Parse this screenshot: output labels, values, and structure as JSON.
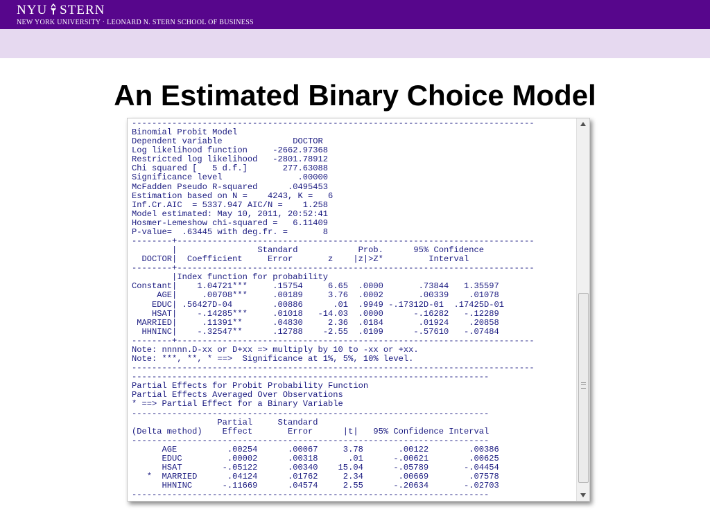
{
  "header": {
    "logo_left": "NYU",
    "logo_right": "STERN",
    "subtitle": "NEW YORK UNIVERSITY · LEONARD N. STERN SCHOOL OF BUSINESS"
  },
  "title": "An Estimated Binary Choice Model",
  "output": {
    "text": "--------------------------------------------------------------------------------\nBinomial Probit Model\nDependent variable              DOCTOR\nLog likelihood function     -2662.97368\nRestricted log likelihood   -2801.78912\nChi squared [   5 d.f.]       277.63088\nSignificance level               .00000\nMcFadden Pseudo R-squared      .0495453\nEstimation based on N =    4243, K =   6\nInf.Cr.AIC  = 5337.947 AIC/N =    1.258\nModel estimated: May 10, 2011, 20:52:41\nHosmer-Lemeshow chi-squared =   6.11409\nP-value=  .63445 with deg.fr. =       8\n--------+-----------------------------------------------------------------------\n        |                Standard            Prob.      95% Confidence\n  DOCTOR|  Coefficient     Error       z    |z|>Z*         Interval\n--------+-----------------------------------------------------------------------\n        |Index function for probability\nConstant|    1.04721***     .15754     6.65  .0000       .73844   1.35597\n     AGE|     .00708***     .00189     3.76  .0002       .00339    .01078\n    EDUC| .56427D-04        .00886      .01  .9949 -.17312D-01  .17425D-01\n    HSAT|    -.14285***     .01018   -14.03  .0000      -.16282   -.12289\n MARRIED|     .11391**      .04830     2.36  .0184       .01924    .20858\n  HHNINC|    -.32547**      .12788    -2.55  .0109      -.57610   -.07484\n--------+-----------------------------------------------------------------------\nNote: nnnnn.D-xx or D+xx => multiply by 10 to -xx or +xx.\nNote: ***, **, * ==>  Significance at 1%, 5%, 10% level.\n--------------------------------------------------------------------------------\n-----------------------------------------------------------------------\nPartial Effects for Probit Probability Function\nPartial Effects Averaged Over Observations\n* ==> Partial Effect for a Binary Variable\n-----------------------------------------------------------------------\n                 Partial     Standard\n(Delta method)    Effect       Error      |t|   95% Confidence Interval\n-----------------------------------------------------------------------\n      AGE          .00254      .00067     3.78       .00122        .00386\n      EDUC         .00002      .00318      .01      -.00621        .00625\n      HSAT        -.05122      .00340    15.04      -.05789       -.04454\n   *  MARRIED      .04124      .01762     2.34       .00669        .07578\n      HHNINC      -.11669      .04574     2.55      -.20634       -.02703\n-----------------------------------------------------------------------"
  },
  "icons": {
    "logo_torch": "torch-icon",
    "scroll_up": "arrow-up-icon",
    "scroll_down": "arrow-down-icon"
  },
  "colors": {
    "header_purple": "#57068c",
    "band_lavender": "#e6d9f0",
    "output_text": "#1a1a80"
  }
}
